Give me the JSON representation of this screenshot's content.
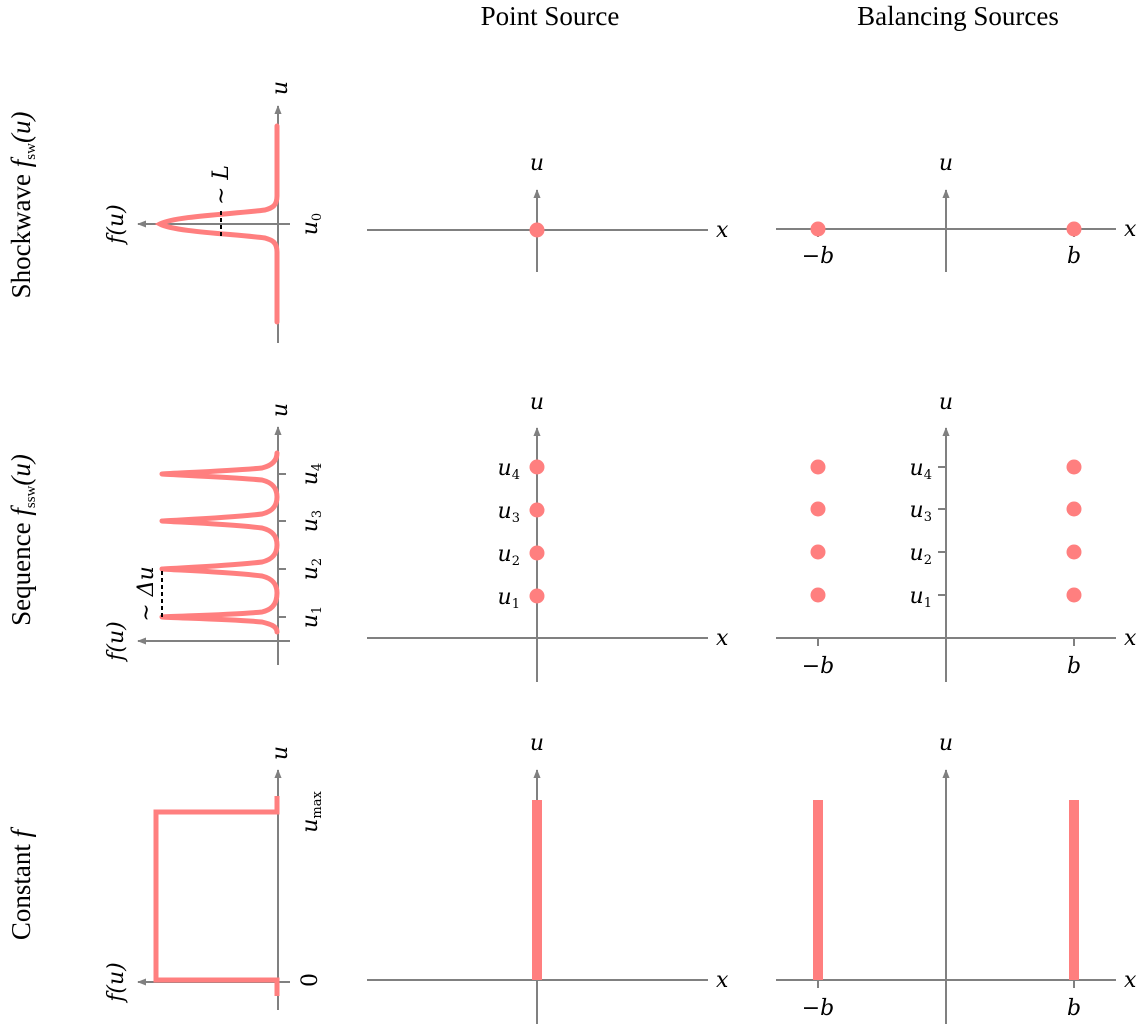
{
  "columns": {
    "left_header": "Point Source",
    "right_header": "Balancing Sources"
  },
  "rows": {
    "r1": {
      "title": "Shockwave ",
      "fn": "f",
      "fn_sub": "sw",
      "fn_arg": "(u)"
    },
    "r2": {
      "title": "Sequence ",
      "fn": "f",
      "fn_sub": "ssw",
      "fn_arg": "(u)"
    },
    "r3": {
      "title": "Constant ",
      "fn": "f"
    }
  },
  "labels": {
    "u": "u",
    "x": "x",
    "f_of_u": "f(u)",
    "b": "b",
    "neg_b": "−b",
    "width_L": "∼ L",
    "delta_u": "∼ Δu",
    "u0": "u",
    "u0_sub": "0",
    "u1": "u",
    "u1_sub": "1",
    "u2": "u",
    "u2_sub": "2",
    "u3": "u",
    "u3_sub": "3",
    "u4": "u",
    "u4_sub": "4",
    "umax": "u",
    "umax_sub": "max",
    "zero": "0"
  },
  "colors": {
    "curve": "#ff7f7f",
    "axis": "#808080",
    "text": "#000000"
  }
}
